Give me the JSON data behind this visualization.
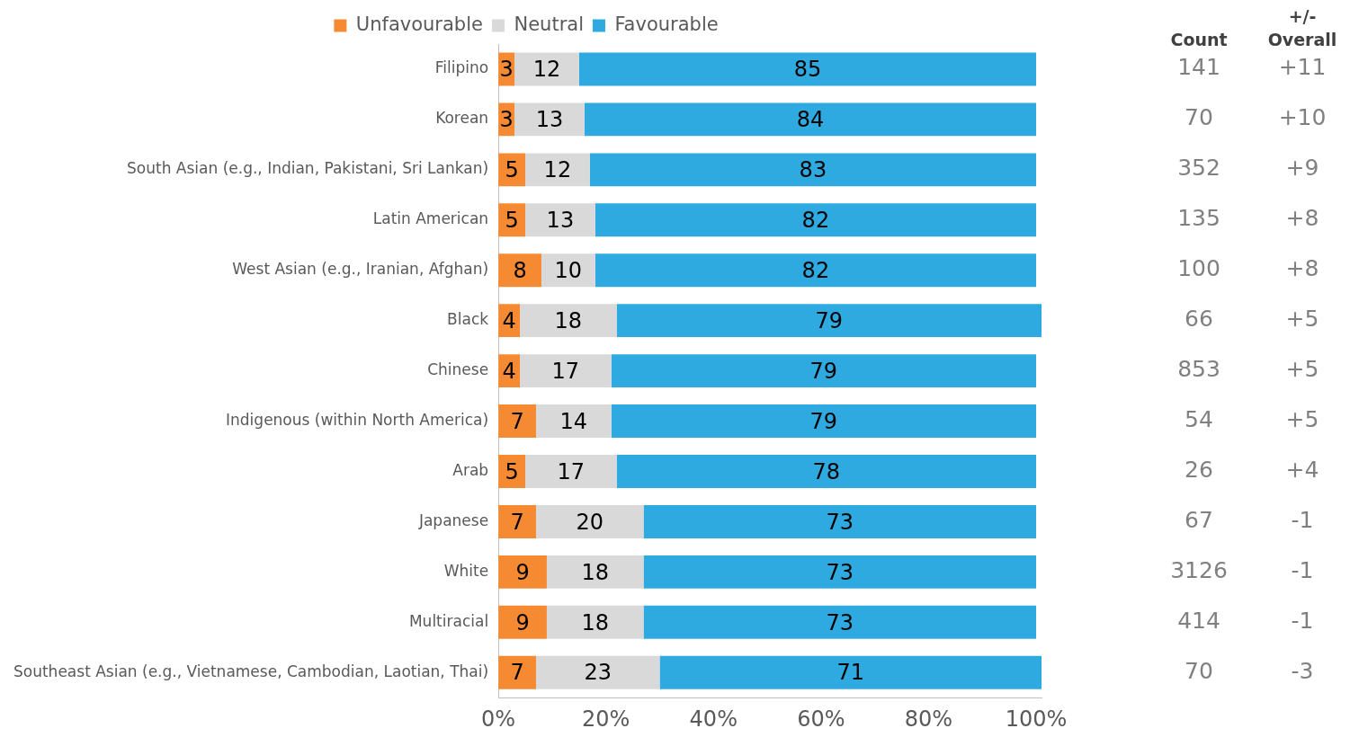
{
  "chart_data": {
    "type": "bar",
    "orientation": "horizontal",
    "stacked": true,
    "legend": "top",
    "data_labels": true,
    "categories": [
      "Filipino",
      "Korean",
      "South Asian (e.g., Indian, Pakistani, Sri Lankan)",
      "Latin American",
      "West Asian (e.g., Iranian, Afghan)",
      "Black",
      "Chinese",
      "Indigenous (within North America)",
      "Arab",
      "Japanese",
      "White",
      "Multiracial",
      "Southeast Asian (e.g., Vietnamese, Cambodian, Laotian, Thai)"
    ],
    "series": [
      {
        "name": "Unfavourable",
        "color": "#f58a33",
        "values": [
          3,
          3,
          5,
          5,
          8,
          4,
          4,
          7,
          5,
          7,
          9,
          9,
          7
        ]
      },
      {
        "name": "Neutral",
        "color": "#d9d9d9",
        "values": [
          12,
          13,
          12,
          13,
          10,
          18,
          17,
          14,
          17,
          20,
          18,
          18,
          23
        ]
      },
      {
        "name": "Favourable",
        "color": "#2eaae1",
        "values": [
          85,
          84,
          83,
          82,
          82,
          79,
          79,
          79,
          78,
          73,
          73,
          73,
          71
        ]
      }
    ],
    "xlim": [
      0,
      101
    ],
    "xticks": [
      {
        "value": 0,
        "label": "0%"
      },
      {
        "value": 20,
        "label": "20%"
      },
      {
        "value": 40,
        "label": "40%"
      },
      {
        "value": 60,
        "label": "60%"
      },
      {
        "value": 80,
        "label": "80%"
      },
      {
        "value": 100,
        "label": "100%"
      }
    ],
    "annotations": [
      "Count",
      "+/- Overall",
      "141",
      "+11",
      "70",
      "+10",
      "352",
      "+9",
      "135",
      "+8",
      "100",
      "+8",
      "66",
      "+5",
      "853",
      "+5",
      "54",
      "+5",
      "26",
      "+4",
      "67",
      "-1",
      "3126",
      "-1",
      "414",
      "-1",
      "70",
      "-3"
    ]
  }
}
